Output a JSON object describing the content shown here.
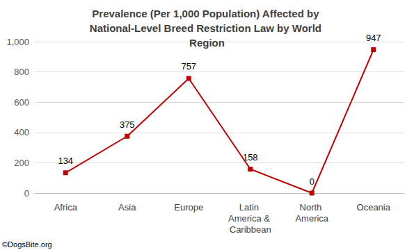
{
  "chart_data": {
    "type": "line",
    "title": "Prevalence (Per 1,000 Population) Affected by National-Level Breed Restriction Law by World Region",
    "categories": [
      "Africa",
      "Asia",
      "Europe",
      "Latin America & Caribbean",
      "North America",
      "Oceania"
    ],
    "values": [
      134,
      375,
      757,
      158,
      0,
      947
    ],
    "color": "#c00000",
    "marker": "square",
    "data_labels": true,
    "ylim": [
      0,
      1000
    ],
    "yticks": [
      0,
      200,
      400,
      600,
      800,
      {
        "value": 1000,
        "label": "1,000"
      }
    ],
    "grid": true,
    "annotations": [
      "©DogsBite.org"
    ]
  }
}
